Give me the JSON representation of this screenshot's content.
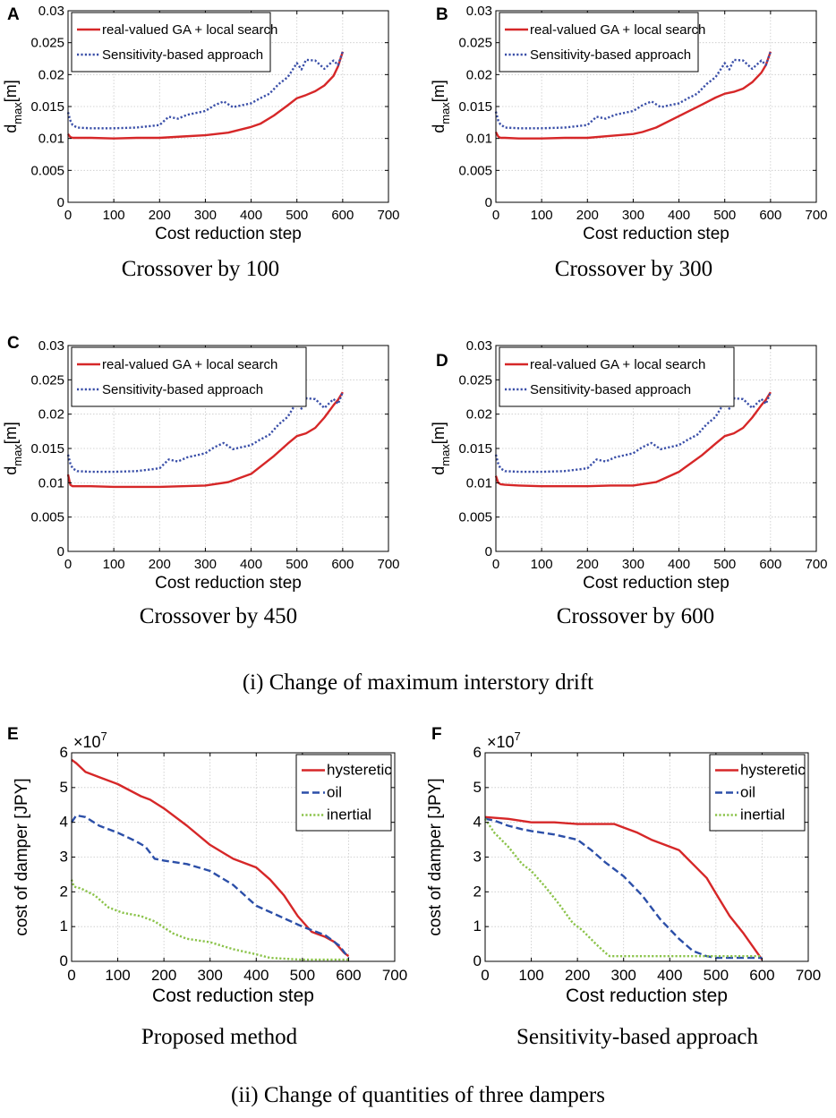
{
  "chart_data": [
    {
      "type": "line",
      "panel_label": "A",
      "caption": "Crossover by 100",
      "xlabel": "Cost reduction step",
      "ylabel": {
        "base": "d",
        "sub": "max",
        "unit": "[m]"
      },
      "xlim": [
        0,
        700
      ],
      "ylim": [
        0,
        0.03
      ],
      "xticks": [
        0,
        100,
        200,
        300,
        400,
        500,
        600,
        700
      ],
      "yticks": [
        0,
        0.005,
        0.01,
        0.015,
        0.02,
        0.025,
        0.03
      ],
      "ytick_labels": [
        "0",
        "0.005",
        "0.01",
        "0.015",
        "0.02",
        "0.025",
        "0.03"
      ],
      "grid": true,
      "legend_position": "top-left",
      "series": [
        {
          "name": "real-valued GA + local search",
          "color": "#d62728",
          "style": "solid",
          "x": [
            0,
            5,
            10,
            20,
            50,
            100,
            150,
            200,
            250,
            300,
            350,
            400,
            420,
            450,
            480,
            500,
            520,
            540,
            560,
            580,
            590,
            600
          ],
          "y": [
            0.0107,
            0.0102,
            0.0101,
            0.0101,
            0.0101,
            0.01,
            0.0101,
            0.0101,
            0.0103,
            0.0105,
            0.0109,
            0.0118,
            0.0123,
            0.0136,
            0.0152,
            0.0163,
            0.0168,
            0.0174,
            0.0183,
            0.0198,
            0.0213,
            0.0236
          ]
        },
        {
          "name": "Sensitivity-based approach",
          "color": "#3a4fa8",
          "style": "dotted",
          "x": [
            0,
            5,
            10,
            20,
            50,
            100,
            150,
            200,
            220,
            240,
            260,
            300,
            320,
            340,
            360,
            400,
            420,
            440,
            460,
            480,
            500,
            510,
            520,
            540,
            560,
            580,
            590,
            600
          ],
          "y": [
            0.0141,
            0.0128,
            0.0121,
            0.0117,
            0.0116,
            0.0116,
            0.0117,
            0.0121,
            0.0134,
            0.0131,
            0.0137,
            0.0143,
            0.0152,
            0.0158,
            0.0149,
            0.0155,
            0.0163,
            0.017,
            0.0185,
            0.0196,
            0.0218,
            0.0208,
            0.0223,
            0.0222,
            0.0209,
            0.0222,
            0.0215,
            0.0236
          ]
        }
      ]
    },
    {
      "type": "line",
      "panel_label": "B",
      "caption": "Crossover by 300",
      "xlabel": "Cost reduction step",
      "ylabel": {
        "base": "d",
        "sub": "max",
        "unit": "[m]"
      },
      "xlim": [
        0,
        700
      ],
      "ylim": [
        0,
        0.03
      ],
      "xticks": [
        0,
        100,
        200,
        300,
        400,
        500,
        600,
        700
      ],
      "yticks": [
        0,
        0.005,
        0.01,
        0.015,
        0.02,
        0.025,
        0.03
      ],
      "ytick_labels": [
        "0",
        "0.005",
        "0.01",
        "0.015",
        "0.02",
        "0.025",
        "0.03"
      ],
      "grid": true,
      "legend_position": "top-left",
      "series": [
        {
          "name": "real-valued GA + local search",
          "color": "#d62728",
          "style": "solid",
          "x": [
            0,
            5,
            10,
            20,
            50,
            100,
            150,
            200,
            250,
            300,
            320,
            350,
            400,
            450,
            480,
            500,
            520,
            540,
            560,
            580,
            590,
            600
          ],
          "y": [
            0.011,
            0.0103,
            0.0101,
            0.0101,
            0.01,
            0.01,
            0.0101,
            0.0101,
            0.0104,
            0.0107,
            0.011,
            0.0117,
            0.0135,
            0.0153,
            0.0164,
            0.017,
            0.0173,
            0.0178,
            0.0188,
            0.0203,
            0.0215,
            0.0236
          ]
        },
        {
          "name": "Sensitivity-based approach",
          "color": "#3a4fa8",
          "style": "dotted",
          "x": [
            0,
            5,
            10,
            20,
            50,
            100,
            150,
            200,
            220,
            240,
            260,
            300,
            320,
            340,
            360,
            400,
            420,
            440,
            460,
            480,
            500,
            510,
            520,
            540,
            560,
            580,
            590,
            600
          ],
          "y": [
            0.0142,
            0.0128,
            0.0122,
            0.0117,
            0.0116,
            0.0116,
            0.0117,
            0.0121,
            0.0134,
            0.0131,
            0.0137,
            0.0143,
            0.0152,
            0.0158,
            0.0149,
            0.0155,
            0.0163,
            0.017,
            0.0185,
            0.0196,
            0.0218,
            0.0208,
            0.0223,
            0.0222,
            0.0209,
            0.0222,
            0.0215,
            0.0236
          ]
        }
      ]
    },
    {
      "type": "line",
      "panel_label": "C",
      "caption": "Crossover by 450",
      "xlabel": "Cost reduction step",
      "ylabel": {
        "base": "d",
        "sub": "max",
        "unit": "[m]"
      },
      "xlim": [
        0,
        700
      ],
      "ylim": [
        0,
        0.03
      ],
      "xticks": [
        0,
        100,
        200,
        300,
        400,
        500,
        600,
        700
      ],
      "yticks": [
        0,
        0.005,
        0.01,
        0.015,
        0.02,
        0.025,
        0.03
      ],
      "ytick_labels": [
        "0",
        "0.005",
        "0.01",
        "0.015",
        "0.02",
        "0.025",
        "0.03"
      ],
      "grid": true,
      "legend_position": "top-left",
      "series": [
        {
          "name": "real-valued GA + local search",
          "color": "#d62728",
          "style": "solid",
          "x": [
            0,
            5,
            10,
            20,
            50,
            100,
            150,
            200,
            250,
            300,
            350,
            400,
            450,
            480,
            500,
            520,
            540,
            560,
            580,
            590,
            600
          ],
          "y": [
            0.0112,
            0.0097,
            0.0095,
            0.0095,
            0.0095,
            0.0094,
            0.0094,
            0.0094,
            0.0095,
            0.0096,
            0.0101,
            0.0113,
            0.0139,
            0.0157,
            0.0168,
            0.0172,
            0.018,
            0.0195,
            0.0213,
            0.0221,
            0.0232
          ]
        },
        {
          "name": "Sensitivity-based approach",
          "color": "#3a4fa8",
          "style": "dotted",
          "x": [
            0,
            5,
            10,
            20,
            50,
            100,
            150,
            200,
            220,
            240,
            260,
            300,
            320,
            340,
            360,
            400,
            420,
            440,
            460,
            480,
            500,
            510,
            520,
            540,
            560,
            580,
            590,
            600
          ],
          "y": [
            0.0141,
            0.0128,
            0.0121,
            0.0117,
            0.0116,
            0.0116,
            0.0117,
            0.0121,
            0.0134,
            0.0131,
            0.0137,
            0.0143,
            0.0152,
            0.0158,
            0.0149,
            0.0155,
            0.0163,
            0.017,
            0.0185,
            0.0196,
            0.0218,
            0.0208,
            0.0223,
            0.0222,
            0.0209,
            0.0222,
            0.0215,
            0.0232
          ]
        }
      ]
    },
    {
      "type": "line",
      "panel_label": "D",
      "caption": "Crossover by 600",
      "xlabel": "Cost reduction step",
      "ylabel": {
        "base": "d",
        "sub": "max",
        "unit": "[m]"
      },
      "xlim": [
        0,
        700
      ],
      "ylim": [
        0,
        0.03
      ],
      "xticks": [
        0,
        100,
        200,
        300,
        400,
        500,
        600,
        700
      ],
      "yticks": [
        0,
        0.005,
        0.01,
        0.015,
        0.02,
        0.025,
        0.03
      ],
      "ytick_labels": [
        "0",
        "0.005",
        "0.01",
        "0.015",
        "0.02",
        "0.025",
        "0.03"
      ],
      "grid": true,
      "legend_position": "top-left",
      "series": [
        {
          "name": "real-valued GA + local search",
          "color": "#d62728",
          "style": "solid",
          "x": [
            0,
            5,
            10,
            20,
            50,
            100,
            150,
            200,
            250,
            300,
            350,
            400,
            450,
            480,
            500,
            520,
            540,
            560,
            580,
            590,
            600
          ],
          "y": [
            0.011,
            0.01,
            0.0098,
            0.0097,
            0.0096,
            0.0095,
            0.0095,
            0.0095,
            0.0096,
            0.0096,
            0.0101,
            0.0116,
            0.014,
            0.0157,
            0.0168,
            0.0172,
            0.018,
            0.0195,
            0.0213,
            0.0221,
            0.0232
          ]
        },
        {
          "name": "Sensitivity-based approach",
          "color": "#3a4fa8",
          "style": "dotted",
          "x": [
            0,
            5,
            10,
            20,
            50,
            100,
            150,
            200,
            220,
            240,
            260,
            300,
            320,
            340,
            360,
            400,
            420,
            440,
            460,
            480,
            500,
            510,
            520,
            540,
            560,
            580,
            590,
            600
          ],
          "y": [
            0.0141,
            0.0128,
            0.0121,
            0.0117,
            0.0116,
            0.0116,
            0.0117,
            0.0121,
            0.0134,
            0.0131,
            0.0137,
            0.0143,
            0.0152,
            0.0158,
            0.0149,
            0.0155,
            0.0163,
            0.017,
            0.0185,
            0.0196,
            0.0218,
            0.0208,
            0.0223,
            0.0222,
            0.0209,
            0.0222,
            0.0215,
            0.0232
          ]
        }
      ]
    },
    {
      "type": "line",
      "panel_label": "E",
      "caption": "Proposed method",
      "xlabel": "Cost reduction step",
      "ylabel": {
        "base": "cost of damper [JPY]",
        "sub": "",
        "unit": ""
      },
      "multiplier": {
        "base": "×10",
        "exponent": "7"
      },
      "xlim": [
        0,
        700
      ],
      "ylim": [
        0,
        6
      ],
      "xticks": [
        0,
        100,
        200,
        300,
        400,
        500,
        600,
        700
      ],
      "yticks": [
        0,
        1,
        2,
        3,
        4,
        5,
        6
      ],
      "ytick_labels": [
        "0",
        "1",
        "2",
        "3",
        "4",
        "5",
        "6"
      ],
      "grid": true,
      "legend_position": "top-right",
      "series": [
        {
          "name": "hysteretic",
          "color": "#d62728",
          "style": "solid",
          "x": [
            0,
            10,
            30,
            60,
            100,
            150,
            170,
            200,
            250,
            300,
            350,
            400,
            430,
            460,
            490,
            520,
            550,
            570,
            590,
            600
          ],
          "y": [
            5.8,
            5.7,
            5.45,
            5.3,
            5.1,
            4.75,
            4.65,
            4.4,
            3.9,
            3.35,
            2.95,
            2.7,
            2.35,
            1.9,
            1.3,
            0.85,
            0.7,
            0.55,
            0.25,
            0.15
          ]
        },
        {
          "name": "oil",
          "color": "#2c4fa8",
          "style": "dashed",
          "x": [
            0,
            10,
            30,
            60,
            100,
            140,
            160,
            180,
            200,
            250,
            300,
            350,
            400,
            450,
            500,
            550,
            580,
            600
          ],
          "y": [
            4.0,
            4.2,
            4.15,
            3.9,
            3.7,
            3.45,
            3.3,
            2.95,
            2.9,
            2.8,
            2.6,
            2.2,
            1.6,
            1.3,
            1.0,
            0.75,
            0.45,
            0.1
          ]
        },
        {
          "name": "inertial",
          "color": "#8bc34a",
          "style": "dotted",
          "x": [
            0,
            5,
            20,
            50,
            80,
            110,
            150,
            180,
            220,
            250,
            300,
            350,
            400,
            430,
            500,
            550,
            600
          ],
          "y": [
            2.35,
            2.15,
            2.1,
            1.9,
            1.55,
            1.4,
            1.3,
            1.15,
            0.8,
            0.65,
            0.55,
            0.35,
            0.2,
            0.1,
            0.05,
            0.05,
            0.05
          ]
        }
      ]
    },
    {
      "type": "line",
      "panel_label": "F",
      "caption": "Sensitivity-based approach",
      "xlabel": "Cost reduction step",
      "ylabel": {
        "base": "cost of damper [JPY]",
        "sub": "",
        "unit": ""
      },
      "multiplier": {
        "base": "×10",
        "exponent": "7"
      },
      "xlim": [
        0,
        700
      ],
      "ylim": [
        0,
        6
      ],
      "xticks": [
        0,
        100,
        200,
        300,
        400,
        500,
        600,
        700
      ],
      "yticks": [
        0,
        1,
        2,
        3,
        4,
        5,
        6
      ],
      "ytick_labels": [
        "0",
        "1",
        "2",
        "3",
        "4",
        "5",
        "6"
      ],
      "grid": true,
      "legend_position": "top-right",
      "series": [
        {
          "name": "hysteretic",
          "color": "#d62728",
          "style": "solid",
          "x": [
            0,
            50,
            100,
            150,
            200,
            250,
            280,
            300,
            330,
            360,
            400,
            420,
            450,
            480,
            500,
            530,
            560,
            600
          ],
          "y": [
            4.15,
            4.1,
            4.0,
            4.0,
            3.95,
            3.95,
            3.95,
            3.85,
            3.7,
            3.5,
            3.3,
            3.2,
            2.8,
            2.4,
            1.95,
            1.3,
            0.8,
            0.05
          ]
        },
        {
          "name": "oil",
          "color": "#2c4fa8",
          "style": "dashed",
          "x": [
            0,
            20,
            50,
            80,
            100,
            150,
            200,
            230,
            260,
            300,
            340,
            380,
            420,
            450,
            480,
            500,
            550,
            600
          ],
          "y": [
            4.1,
            4.05,
            3.9,
            3.8,
            3.75,
            3.65,
            3.5,
            3.2,
            2.85,
            2.45,
            1.9,
            1.2,
            0.65,
            0.3,
            0.15,
            0.1,
            0.1,
            0.1
          ]
        },
        {
          "name": "inertial",
          "color": "#8bc34a",
          "style": "dotted",
          "x": [
            0,
            20,
            50,
            80,
            100,
            130,
            160,
            190,
            210,
            240,
            260,
            270,
            300,
            350,
            400,
            450,
            500,
            550,
            600
          ],
          "y": [
            4.1,
            3.7,
            3.3,
            2.8,
            2.6,
            2.15,
            1.65,
            1.1,
            0.9,
            0.5,
            0.25,
            0.15,
            0.15,
            0.15,
            0.15,
            0.15,
            0.15,
            0.15,
            0.15
          ]
        }
      ]
    }
  ],
  "section_captions": {
    "drift": "(i) Change of maximum interstory drift",
    "dampers": "(ii) Change of quantities of three dampers"
  }
}
